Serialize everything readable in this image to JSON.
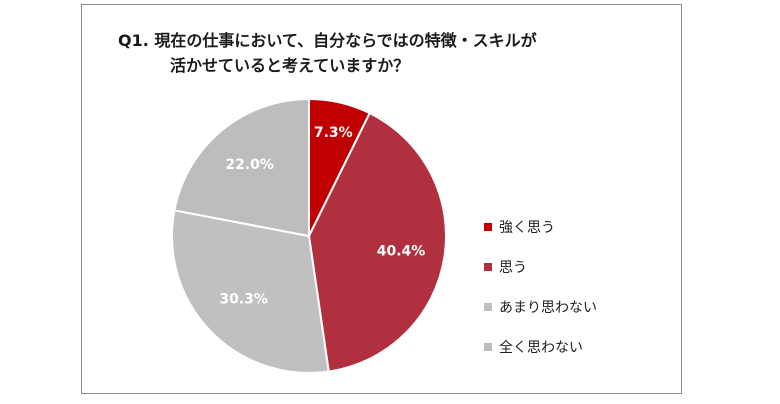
{
  "chart_data": {
    "type": "pie",
    "title_line1": "Q1. 現在の仕事において、自分ならではの特徴・スキルが",
    "title_line2": "活かせていると考えていますか？",
    "slices": [
      {
        "label": "強く思う",
        "value": 7.3,
        "display": "7.3%",
        "color": "#c00000"
      },
      {
        "label": "思う",
        "value": 40.4,
        "display": "40.4%",
        "color": "#b03040"
      },
      {
        "label": "あまり思わない",
        "value": 30.3,
        "display": "30.3%",
        "color": "#c0c0c0"
      },
      {
        "label": "全く思わない",
        "value": 22.0,
        "display": "22.0%",
        "color": "#bdbdbd"
      }
    ],
    "legend_position": "right",
    "label_color": "#ffffff"
  }
}
